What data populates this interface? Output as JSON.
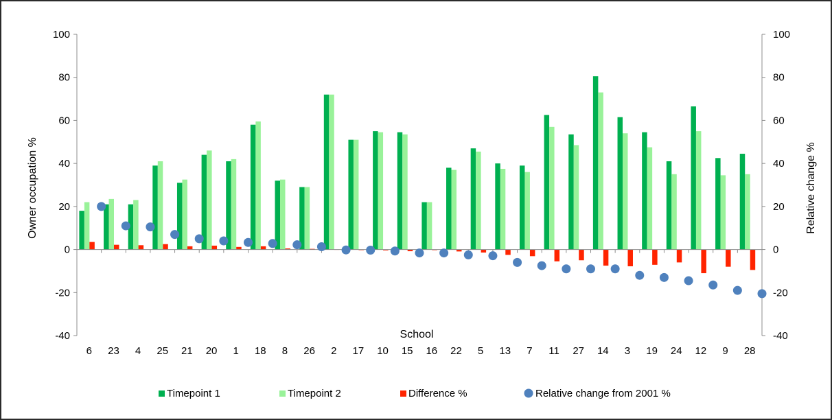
{
  "chart_data": {
    "type": "bar",
    "title": "",
    "xlabel": "School",
    "ylabel": "Owner occupation %",
    "y2label": "Relative change %",
    "ylim": [
      -40,
      100
    ],
    "y2lim": [
      -40,
      100
    ],
    "yticks": [
      -40,
      -20,
      0,
      20,
      40,
      60,
      80,
      100
    ],
    "y2ticks": [
      -40,
      -20,
      0,
      20,
      40,
      60,
      80,
      100
    ],
    "grid": false,
    "legend_position": "bottom",
    "categories": [
      "6",
      "23",
      "4",
      "25",
      "21",
      "20",
      "1",
      "18",
      "8",
      "26",
      "2",
      "17",
      "10",
      "15",
      "16",
      "22",
      "5",
      "13",
      "7",
      "11",
      "27",
      "14",
      "3",
      "19",
      "24",
      "12",
      "9",
      "28"
    ],
    "series": [
      {
        "name": "Timepoint 1",
        "type": "bar",
        "color": "#00b050",
        "values": [
          18,
          21,
          21,
          39,
          31,
          44,
          41,
          58,
          32,
          29,
          72,
          51,
          55,
          54.5,
          22,
          38,
          47,
          40,
          39,
          62.5,
          53.5,
          80.5,
          61.5,
          54.5,
          41,
          66.5,
          42.5,
          44.5
        ]
      },
      {
        "name": "Timepoint 2",
        "type": "bar",
        "color": "#99f299",
        "values": [
          22,
          23.5,
          23,
          41,
          32.5,
          46,
          42,
          59.5,
          32.5,
          29,
          72,
          51,
          54.5,
          53.5,
          22,
          37,
          45.5,
          37.5,
          36,
          57,
          48.5,
          73,
          54,
          47.5,
          35,
          55,
          34.5,
          35
        ]
      },
      {
        "name": "Difference %",
        "type": "bar",
        "color": "#ff2400",
        "values": [
          3.5,
          2.2,
          2,
          2.5,
          1.5,
          1.8,
          1.2,
          1.5,
          0.5,
          0.3,
          0,
          -0.3,
          -0.4,
          -0.8,
          -0.3,
          -0.9,
          -1.4,
          -2.5,
          -3.1,
          -5.5,
          -5,
          -7.5,
          -7.8,
          -7.1,
          -6,
          -11,
          -8,
          -9.5
        ]
      },
      {
        "name": "Relative change from 2001 %",
        "type": "scatter",
        "axis": "right",
        "color": "#4f81bd",
        "values": [
          20,
          11,
          10.5,
          7,
          5,
          4,
          3.3,
          2.8,
          2.2,
          1.3,
          -0.2,
          -0.3,
          -0.7,
          -1.6,
          -1.6,
          -2.5,
          -2.9,
          -6,
          -7.5,
          -9,
          -9,
          -9,
          -12,
          -13,
          -14.5,
          -16.5,
          -19,
          -20.5
        ]
      }
    ]
  }
}
